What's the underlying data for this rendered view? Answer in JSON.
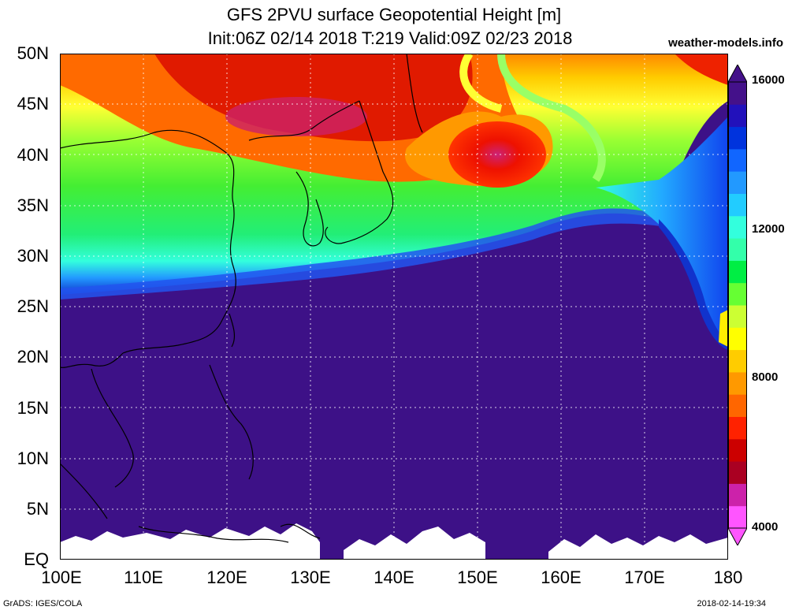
{
  "header": {
    "title": "GFS 2PVU surface Geopotential Height [m]",
    "subtitle": "Init:06Z 02/14 2018 T:219 Valid:09Z 02/23 2018",
    "site": "weather-models.info"
  },
  "map": {
    "lon_range": [
      100,
      180
    ],
    "lat_range": [
      0,
      50
    ],
    "lat_labels": [
      "50N",
      "45N",
      "40N",
      "35N",
      "30N",
      "25N",
      "20N",
      "15N",
      "10N",
      "5N",
      "EQ"
    ],
    "lon_labels": [
      "100E",
      "110E",
      "120E",
      "130E",
      "140E",
      "150E",
      "160E",
      "170E",
      "180"
    ],
    "grid": true
  },
  "colorbar": {
    "labels": [
      "16000",
      "12000",
      "8000",
      "4000"
    ],
    "colors": [
      "#ff55ff",
      "#cc22aa",
      "#aa0022",
      "#cc0000",
      "#ff2200",
      "#ff6600",
      "#ff9900",
      "#ffcc00",
      "#ffff00",
      "#ccff33",
      "#66ff33",
      "#00ee44",
      "#33ffaa",
      "#33ffdd",
      "#22ccff",
      "#2299ff",
      "#1166ff",
      "#0033dd",
      "#2211bb",
      "#44118a"
    ]
  },
  "footer": {
    "left": "GrADS: IGES/COLA",
    "right": "2018-02-14-19:34"
  }
}
